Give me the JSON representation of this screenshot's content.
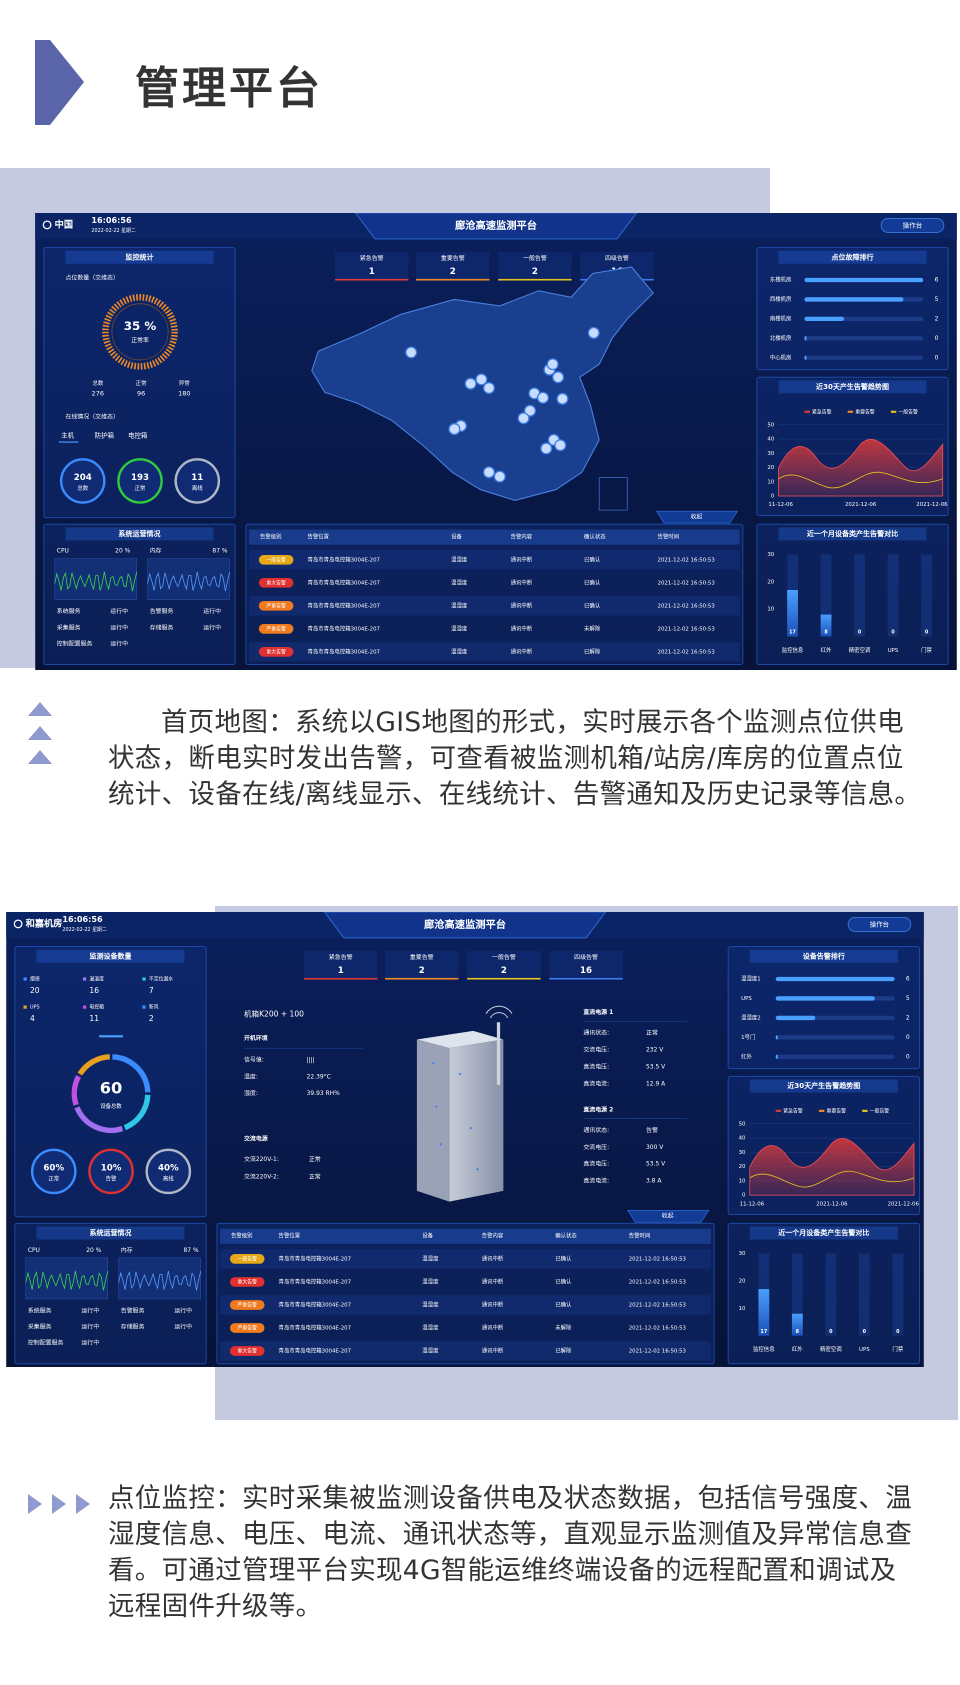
{
  "header": {
    "title": "管理平台"
  },
  "shared": {
    "platform_title": "廊沧高速监测平台",
    "time": "16:06:56",
    "date": "2022-02-22 星期二",
    "console": "操作台",
    "collapse": "收起",
    "alerts": [
      {
        "label": "紧急告警",
        "value": 1,
        "color": "#e03a3a"
      },
      {
        "label": "重要告警",
        "value": 2,
        "color": "#f08a24"
      },
      {
        "label": "一般告警",
        "value": 2,
        "color": "#e8c21e"
      },
      {
        "label": "四级告警",
        "value": 16,
        "color": "#3a7cf0"
      }
    ],
    "system": {
      "title": "系统运营情况",
      "cpu_label": "CPU",
      "cpu": "20 %",
      "mem_label": "内存",
      "mem": "87 %",
      "services": [
        {
          "name": "系统服务",
          "state": "运行中"
        },
        {
          "name": "告警服务",
          "state": "运行中"
        },
        {
          "name": "采集服务",
          "state": "运行中"
        },
        {
          "name": "存储服务",
          "state": "运行中"
        },
        {
          "name": "控制配置服务",
          "state": "运行中"
        }
      ]
    },
    "table": {
      "headers": [
        "告警级别",
        "告警位置",
        "设备",
        "告警内容",
        "确认状态",
        "告警时间"
      ],
      "rows": [
        {
          "cells": [
            "一般告警",
            "青岛市青岛电控箱3004E-207",
            "温湿度",
            "通讯中断",
            "已确认",
            "2021-12-02 16:50:53"
          ],
          "level_color": "#e6a817",
          "status_color": "#ffffff"
        },
        {
          "cells": [
            "重大告警",
            "青岛市青岛电控箱3004E-207",
            "温湿度",
            "通讯中断",
            "已确认",
            "2021-12-02 16:50:53"
          ],
          "level_color": "#e03030",
          "status_color": "#ffffff"
        },
        {
          "cells": [
            "严重告警",
            "青岛市青岛电控箱3004E-207",
            "温湿度",
            "通讯中断",
            "已确认",
            "2021-12-02 16:50:53"
          ],
          "level_color": "#f07a20",
          "status_color": "#ffffff"
        },
        {
          "cells": [
            "严重告警",
            "青岛市青岛电控箱3004E-207",
            "温湿度",
            "通讯中断",
            "未解除",
            "2021-12-02 16:50:53"
          ],
          "level_color": "#f07a20",
          "status_color": "#ff4a4a"
        },
        {
          "cells": [
            "重大告警",
            "青岛市青岛电控箱3004E-207",
            "温湿度",
            "通讯中断",
            "已解除",
            "2021-12-02 16:50:53"
          ],
          "level_color": "#e03030",
          "status_color": "#3ddc4a"
        }
      ]
    },
    "trend": {
      "title": "近30天产生告警趋势图",
      "legend": [
        {
          "name": "紧急告警",
          "color": "#e03a3a"
        },
        {
          "name": "重要告警",
          "color": "#f08a24"
        },
        {
          "name": "一般告警",
          "color": "#e8c21e"
        }
      ],
      "yticks": [
        50,
        40,
        30,
        20,
        10,
        0
      ],
      "dates": [
        "11-12-06",
        "2021-12-06",
        "2021-12-06"
      ]
    },
    "device_compare": {
      "title": "近一个月设备类产生告警对比",
      "yticks": [
        30,
        20,
        10
      ],
      "categories": [
        "监控信息",
        "红外",
        "精密空调",
        "UPS",
        "门禁"
      ],
      "values": [
        17,
        8,
        0,
        0,
        0
      ]
    }
  },
  "dashboard1": {
    "location": "中国",
    "stats": {
      "title": "监控统计",
      "count_label": "点位数量（交维态）",
      "rate": "35 %",
      "rate_label": "正常率",
      "items": [
        {
          "label": "总数",
          "value": 276
        },
        {
          "label": "正常",
          "value": 96
        },
        {
          "label": "异常",
          "value": 180
        }
      ],
      "online_label": "在线情况（交维态）",
      "tabs": [
        "主机",
        "防护箱",
        "电控箱"
      ],
      "circles": [
        {
          "value": 204,
          "label": "总数",
          "color": "#3a8cff"
        },
        {
          "value": 193,
          "label": "正常",
          "color": "#2ecc40"
        },
        {
          "value": 11,
          "label": "离线",
          "color": "#b0b8c8"
        }
      ]
    },
    "ranking": {
      "title": "点位故障排行",
      "items": [
        {
          "name": "东楼机房",
          "value": 6
        },
        {
          "name": "西楼机房",
          "value": 5
        },
        {
          "name": "南楼机房",
          "value": 2
        },
        {
          "name": "北楼机房",
          "value": 0
        },
        {
          "name": "中心机房",
          "value": 0
        }
      ]
    }
  },
  "dashboard2": {
    "location": "和嘉机房",
    "devices": {
      "title": "监测设备数量",
      "items": [
        {
          "label": "烟感",
          "value": 20,
          "color": "#3a8cff"
        },
        {
          "label": "温湿度",
          "value": 16,
          "color": "#a070f0"
        },
        {
          "label": "不定位漏水",
          "value": 7,
          "color": "#30c8e8"
        },
        {
          "label": "UPS",
          "value": 4,
          "color": "#e8a020"
        },
        {
          "label": "电控箱",
          "value": 11,
          "color": "#c050e0"
        },
        {
          "label": "新风",
          "value": 2,
          "color": "#3a8cff"
        }
      ],
      "total": 60,
      "total_label": "设备总数",
      "circles": [
        {
          "value": "60%",
          "label": "正常",
          "color": "#3a8cff"
        },
        {
          "value": "10%",
          "label": "告警",
          "color": "#e03030"
        },
        {
          "value": "40%",
          "label": "离线",
          "color": "#b0b8c8"
        }
      ]
    },
    "cabinet": {
      "name": "机箱K200 + 100",
      "env_title": "开机环境",
      "env": [
        {
          "label": "信号值:",
          "value": "||||",
          "color": "#9fb8e8"
        },
        {
          "label": "温度:",
          "value": "22.39°C",
          "color": "#9fb8e8"
        },
        {
          "label": "湿度:",
          "value": "39.93 RH%",
          "color": "#9fb8e8"
        }
      ],
      "ac_title": "交流电源",
      "ac": [
        {
          "label": "交流220V-1:",
          "value": "正常",
          "color": "#3ddc4a"
        },
        {
          "label": "交流220V-2:",
          "value": "正常",
          "color": "#3ddc4a"
        }
      ],
      "dc": [
        {
          "title": "直流电源 1",
          "rows": [
            {
              "label": "通讯状态:",
              "value": "正常",
              "color": "#3ddc4a"
            },
            {
              "label": "交流电压:",
              "value": "232 V",
              "color": "#9fb8e8"
            },
            {
              "label": "直流电压:",
              "value": "53.5 V",
              "color": "#9fb8e8"
            },
            {
              "label": "直流电流:",
              "value": "12.9 A",
              "color": "#9fb8e8"
            }
          ]
        },
        {
          "title": "直流电源 2",
          "rows": [
            {
              "label": "通讯状态:",
              "value": "告警",
              "color": "#ff4a4a"
            },
            {
              "label": "交流电压:",
              "value": "300 V",
              "color": "#ff4a4a"
            },
            {
              "label": "直流电压:",
              "value": "53.5 V",
              "color": "#9fb8e8"
            },
            {
              "label": "直流电流:",
              "value": "3.8 A",
              "color": "#9fb8e8"
            }
          ]
        }
      ]
    },
    "ranking": {
      "title": "设备告警排行",
      "items": [
        {
          "name": "温湿度1",
          "value": 6
        },
        {
          "name": "UPS",
          "value": 5
        },
        {
          "name": "温湿度2",
          "value": 2
        },
        {
          "name": "1号门",
          "value": 0
        },
        {
          "name": "红外",
          "value": 0
        }
      ]
    }
  },
  "sections": [
    {
      "text": "首页地图：系统以GIS地图的形式，实时展示各个监测点位供电状态，断电实时发出告警，可查看被监测机箱/站房/库房的位置点位统计、设备在线/离线显示、在线统计、告警通知及历史记录等信息。"
    },
    {
      "text": "点位监控：实时采集被监测设备供电及状态数据，包括信号强度、温湿度信息、电压、电流、通讯状态等，直观显示监测值及异常信息查看。可通过管理平台实现4G智能运维终端设备的远程配置和调试及远程固件升级等。"
    }
  ]
}
